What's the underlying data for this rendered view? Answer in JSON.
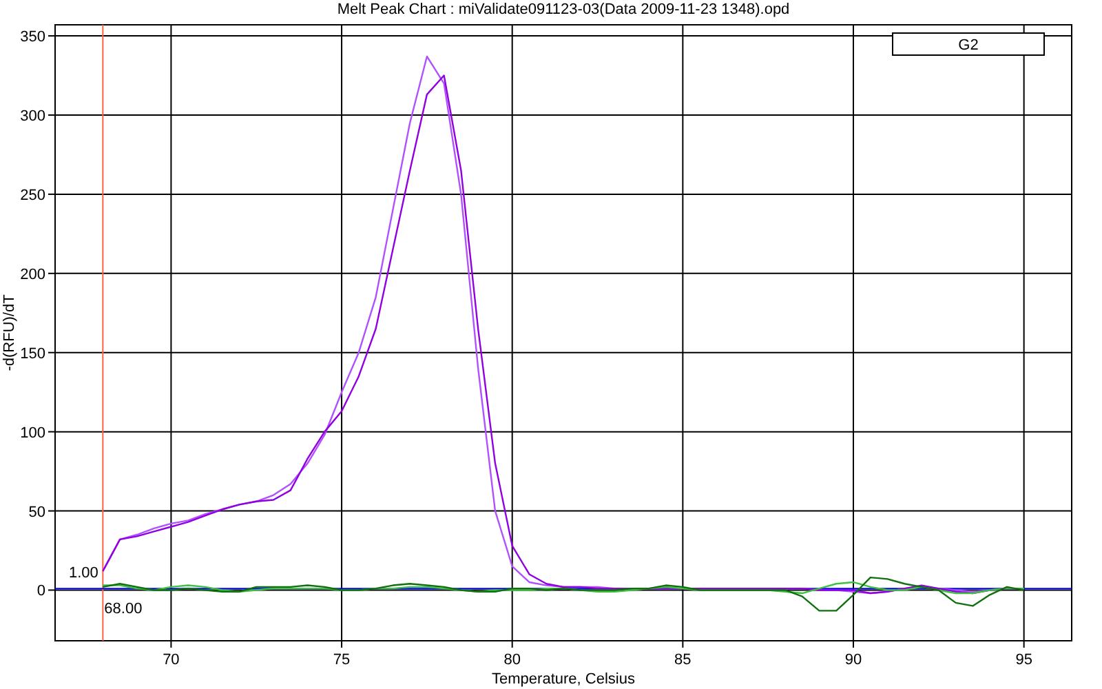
{
  "chart_data": {
    "type": "line",
    "title": "Melt Peak Chart : miValidate091123-03(Data 2009-11-23 1348).opd",
    "xlabel": "Temperature, Celsius",
    "ylabel": "-d(RFU)/dT",
    "annotations": [
      "G2"
    ],
    "grid": true,
    "marker": "none",
    "line_style": "solid",
    "xlim": [
      66.6,
      96.4
    ],
    "ylim": [
      -32,
      357
    ],
    "xticks": [
      70,
      75,
      80,
      85,
      90,
      95
    ],
    "yticks": [
      0,
      50,
      100,
      150,
      200,
      250,
      300,
      350
    ],
    "x": [
      68,
      68.5,
      69,
      69.5,
      70,
      70.5,
      71,
      71.5,
      72,
      72.5,
      73,
      73.5,
      74,
      74.5,
      75,
      75.5,
      76,
      76.5,
      77,
      77.5,
      78,
      78.5,
      79,
      79.5,
      80,
      80.5,
      81,
      81.5,
      82,
      82.5,
      83,
      83.5,
      84,
      84.5,
      85,
      85.5,
      86,
      86.5,
      87,
      87.5,
      88,
      88.5,
      89,
      89.5,
      90,
      90.5,
      91,
      91.5,
      92,
      92.5,
      93,
      93.5,
      94,
      94.5,
      95
    ],
    "ref_lines": [
      {
        "axis": "x",
        "value": 68,
        "label": "68.00",
        "color": "#ff6040"
      },
      {
        "axis": "y",
        "value": 1,
        "label": "1.00",
        "color": "#0000ff"
      }
    ],
    "series": [
      {
        "color": "#b050ff",
        "values": [
          12,
          32,
          35,
          39,
          42,
          44,
          48,
          51,
          54,
          56,
          60,
          67,
          80,
          98,
          125,
          150,
          185,
          240,
          295,
          337,
          320,
          250,
          140,
          50,
          15,
          5,
          3,
          2,
          2,
          2,
          1,
          1,
          1,
          1,
          1,
          1,
          1,
          1,
          1,
          1,
          1,
          1,
          0,
          0,
          -1,
          -2,
          -1,
          1,
          2,
          1,
          0,
          -1,
          0,
          1,
          1
        ]
      },
      {
        "color": "#9000e0",
        "values": [
          12,
          32,
          34,
          37,
          40,
          43,
          47,
          51,
          54,
          56,
          57,
          63,
          83,
          100,
          113,
          135,
          165,
          215,
          265,
          313,
          325,
          265,
          165,
          80,
          28,
          10,
          4,
          2,
          2,
          1,
          1,
          1,
          1,
          1,
          1,
          1,
          1,
          1,
          1,
          1,
          1,
          1,
          0,
          0,
          0,
          -2,
          -1,
          1,
          3,
          1,
          -1,
          -2,
          0,
          1,
          1
        ]
      },
      {
        "color": "#40c040",
        "values": [
          3,
          3,
          1,
          0,
          2,
          3,
          2,
          0,
          -1,
          0,
          1,
          1,
          1,
          1,
          0,
          0,
          1,
          1,
          2,
          2,
          1,
          0,
          -1,
          0,
          0,
          0,
          1,
          1,
          0,
          -1,
          -1,
          0,
          1,
          2,
          1,
          0,
          0,
          0,
          0,
          0,
          -1,
          -2,
          1,
          4,
          5,
          2,
          0,
          0,
          2,
          0,
          -2,
          -2,
          0,
          1,
          1
        ]
      },
      {
        "color": "#107010",
        "values": [
          2,
          4,
          2,
          0,
          0,
          1,
          0,
          -1,
          -1,
          2,
          2,
          2,
          3,
          2,
          0,
          0,
          1,
          3,
          4,
          3,
          2,
          0,
          -1,
          -1,
          1,
          1,
          0,
          1,
          0,
          0,
          0,
          1,
          1,
          3,
          2,
          0,
          0,
          0,
          0,
          0,
          0,
          -4,
          -13,
          -13,
          -3,
          8,
          7,
          4,
          2,
          0,
          -8,
          -10,
          -3,
          2,
          0
        ]
      }
    ]
  }
}
